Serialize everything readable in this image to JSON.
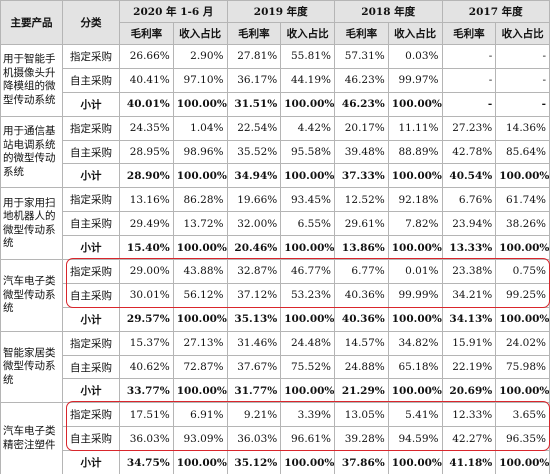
{
  "header": {
    "product": "主要产品",
    "category": "分类",
    "periods": [
      "2020 年 1-6 月",
      "2019 年度",
      "2018 年度",
      "2017 年度"
    ],
    "metrics": [
      "毛利率",
      "收入占比"
    ]
  },
  "groups": [
    {
      "product": "用于智能手机摄像头升降模组的微型传动系统",
      "rows": [
        {
          "category": "指定采购",
          "cells": [
            "26.66%",
            "2.90%",
            "27.81%",
            "55.81%",
            "57.31%",
            "0.03%",
            "-",
            "-"
          ]
        },
        {
          "category": "自主采购",
          "cells": [
            "40.41%",
            "97.10%",
            "36.17%",
            "44.19%",
            "46.23%",
            "99.97%",
            "-",
            "-"
          ]
        },
        {
          "category": "小计",
          "cells": [
            "40.01%",
            "100.00%",
            "31.51%",
            "100.00%",
            "46.23%",
            "100.00%",
            "-",
            "-"
          ]
        }
      ]
    },
    {
      "product": "用于通信基站电调系统的微型传动系统",
      "rows": [
        {
          "category": "指定采购",
          "cells": [
            "24.35%",
            "1.04%",
            "22.54%",
            "4.42%",
            "20.17%",
            "11.11%",
            "27.23%",
            "14.36%"
          ]
        },
        {
          "category": "自主采购",
          "cells": [
            "28.95%",
            "98.96%",
            "35.52%",
            "95.58%",
            "39.48%",
            "88.89%",
            "42.78%",
            "85.64%"
          ]
        },
        {
          "category": "小计",
          "cells": [
            "28.90%",
            "100.00%",
            "34.94%",
            "100.00%",
            "37.33%",
            "100.00%",
            "40.54%",
            "100.00%"
          ]
        }
      ]
    },
    {
      "product": "用于家用扫地机器人的微型传动系统",
      "rows": [
        {
          "category": "指定采购",
          "cells": [
            "13.16%",
            "86.28%",
            "19.66%",
            "93.45%",
            "12.52%",
            "92.18%",
            "6.76%",
            "61.74%"
          ]
        },
        {
          "category": "自主采购",
          "cells": [
            "29.49%",
            "13.72%",
            "32.00%",
            "6.55%",
            "29.61%",
            "7.82%",
            "23.94%",
            "38.26%"
          ]
        },
        {
          "category": "小计",
          "cells": [
            "15.40%",
            "100.00%",
            "20.46%",
            "100.00%",
            "13.86%",
            "100.00%",
            "13.33%",
            "100.00%"
          ]
        }
      ]
    },
    {
      "product": "汽车电子类微型传动系统",
      "rows": [
        {
          "category": "指定采购",
          "cells": [
            "29.00%",
            "43.88%",
            "32.87%",
            "46.77%",
            "6.77%",
            "0.01%",
            "23.38%",
            "0.75%"
          ]
        },
        {
          "category": "自主采购",
          "cells": [
            "30.01%",
            "56.12%",
            "37.12%",
            "53.23%",
            "40.36%",
            "99.99%",
            "34.21%",
            "99.25%"
          ]
        },
        {
          "category": "小计",
          "cells": [
            "29.57%",
            "100.00%",
            "35.13%",
            "100.00%",
            "40.36%",
            "100.00%",
            "34.13%",
            "100.00%"
          ]
        }
      ]
    },
    {
      "product": "智能家居类微型传动系统",
      "rows": [
        {
          "category": "指定采购",
          "cells": [
            "15.37%",
            "27.13%",
            "31.46%",
            "24.48%",
            "14.57%",
            "34.82%",
            "15.91%",
            "24.02%"
          ]
        },
        {
          "category": "自主采购",
          "cells": [
            "40.62%",
            "72.87%",
            "37.67%",
            "75.52%",
            "24.88%",
            "65.18%",
            "22.19%",
            "75.98%"
          ]
        },
        {
          "category": "小计",
          "cells": [
            "33.77%",
            "100.00%",
            "31.77%",
            "100.00%",
            "21.29%",
            "100.00%",
            "20.69%",
            "100.00%"
          ]
        }
      ]
    },
    {
      "product": "汽车电子类精密注塑件",
      "rows": [
        {
          "category": "指定采购",
          "cells": [
            "17.51%",
            "6.91%",
            "9.21%",
            "3.39%",
            "13.05%",
            "5.41%",
            "12.33%",
            "3.65%"
          ]
        },
        {
          "category": "自主采购",
          "cells": [
            "36.03%",
            "93.09%",
            "36.03%",
            "96.61%",
            "39.28%",
            "94.59%",
            "42.27%",
            "96.35%"
          ]
        },
        {
          "category": "小计",
          "cells": [
            "34.75%",
            "100.00%",
            "35.12%",
            "100.00%",
            "37.86%",
            "100.00%",
            "41.18%",
            "100.00%"
          ]
        }
      ]
    }
  ]
}
